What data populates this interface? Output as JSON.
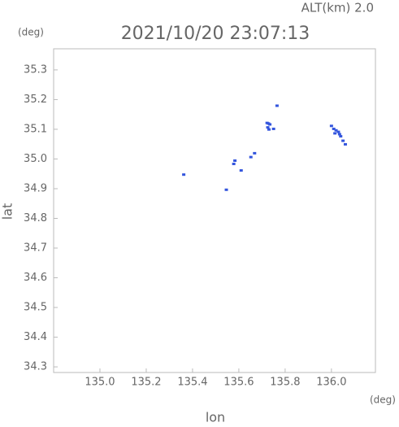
{
  "chart_data": {
    "type": "scatter",
    "title": "2021/10/20 23:07:13",
    "subtitle": "ALT(km)  2.0",
    "y_unit": "(deg)",
    "x_unit": "(deg)",
    "x_label": "lon",
    "y_label": "lat",
    "x": [
      135.765,
      135.722,
      135.728,
      135.734,
      135.725,
      135.73,
      136.0,
      136.01,
      136.02,
      136.03,
      136.035,
      136.04,
      136.05,
      136.06,
      136.015,
      135.583,
      135.578,
      135.668,
      135.652,
      135.61,
      135.546,
      135.362,
      135.75
    ],
    "values": [
      35.178,
      35.12,
      35.118,
      35.115,
      35.105,
      35.098,
      35.11,
      35.1,
      35.095,
      35.09,
      35.082,
      35.075,
      35.06,
      35.048,
      35.085,
      34.993,
      34.982,
      35.018,
      35.005,
      34.96,
      34.895,
      34.946,
      35.1
    ],
    "color": "#3355dd",
    "xlim": [
      134.8,
      136.19
    ],
    "ylim": [
      34.281,
      35.371
    ],
    "xticks": [
      {
        "value": 135.0,
        "label": "135.0"
      },
      135.2,
      135.4,
      135.6,
      135.8,
      {
        "value": 136.0,
        "label": "136.0"
      }
    ],
    "yticks": [
      35.3,
      35.2,
      35.1,
      {
        "value": 35.0,
        "label": "35.0"
      },
      34.9,
      34.8,
      34.7,
      34.6,
      34.5,
      34.4,
      34.3
    ]
  }
}
